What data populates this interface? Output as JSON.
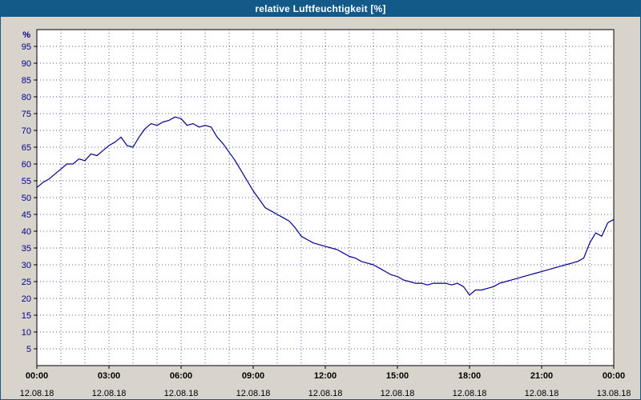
{
  "window": {
    "title": "relative Luftfeuchtigkeit [%]"
  },
  "colors": {
    "titlebar_bg": "#135a89",
    "titlebar_text": "#ffffff",
    "page_bg": "#d8d4cc",
    "plot_bg": "#ffffff",
    "plot_border": "#000000",
    "grid": "#00008b",
    "line": "#00008b",
    "axis_text": "#00008b",
    "time_text": "#000000"
  },
  "chart_data": {
    "type": "line",
    "title": "relative Luftfeuchtigkeit [%]",
    "xlabel": "",
    "ylabel": "%",
    "xlim_hours": [
      0,
      24
    ],
    "ylim": [
      0,
      100
    ],
    "grid": "dotted, vertical every hour, horizontal every 5 %",
    "legend_position": "none",
    "y_ticks": [
      5,
      10,
      15,
      20,
      25,
      30,
      35,
      40,
      45,
      50,
      55,
      60,
      65,
      70,
      75,
      80,
      85,
      90,
      95
    ],
    "x_ticks": [
      {
        "hour": 0,
        "time": "00:00",
        "date": "12.08.18"
      },
      {
        "hour": 3,
        "time": "03:00",
        "date": "12.08.18"
      },
      {
        "hour": 6,
        "time": "06:00",
        "date": "12.08.18"
      },
      {
        "hour": 9,
        "time": "09:00",
        "date": "12.08.18"
      },
      {
        "hour": 12,
        "time": "12:00",
        "date": "12.08.18"
      },
      {
        "hour": 15,
        "time": "15:00",
        "date": "12.08.18"
      },
      {
        "hour": 18,
        "time": "18:00",
        "date": "12.08.18"
      },
      {
        "hour": 21,
        "time": "21:00",
        "date": "12.08.18"
      },
      {
        "hour": 24,
        "time": "00:00",
        "date": "13.08.18"
      }
    ],
    "series": [
      {
        "name": "relative Luftfeuchtigkeit",
        "unit": "%",
        "x_start_hour": 0,
        "sample_interval_hours": 0.25,
        "values": [
          53,
          54.5,
          55.5,
          57,
          58.5,
          60,
          60,
          61.5,
          61,
          63,
          62.5,
          64,
          65.5,
          66.5,
          68,
          65.5,
          65,
          68,
          70.5,
          72,
          71.5,
          72.5,
          73,
          74,
          73.5,
          71.5,
          72,
          71,
          71.5,
          71,
          68,
          66,
          63.5,
          61,
          58,
          55,
          52,
          49.5,
          47,
          46,
          45,
          44,
          43,
          41,
          38.5,
          37.5,
          36.5,
          36,
          35.5,
          35,
          34.5,
          33.5,
          32.5,
          32,
          31,
          30.5,
          30,
          29,
          28,
          27,
          26.5,
          25.5,
          25,
          24.5,
          24.5,
          24,
          24.5,
          24.5,
          24.5,
          24,
          24.5,
          23.5,
          21,
          22.5,
          22.5,
          23,
          23.5,
          24.5,
          25,
          25.5,
          26,
          26.5,
          27,
          27.5,
          28,
          28.5,
          29,
          29.5,
          30,
          30.5,
          31,
          32,
          36.5,
          39.5,
          38.5,
          42.5,
          43.5
        ]
      }
    ]
  }
}
